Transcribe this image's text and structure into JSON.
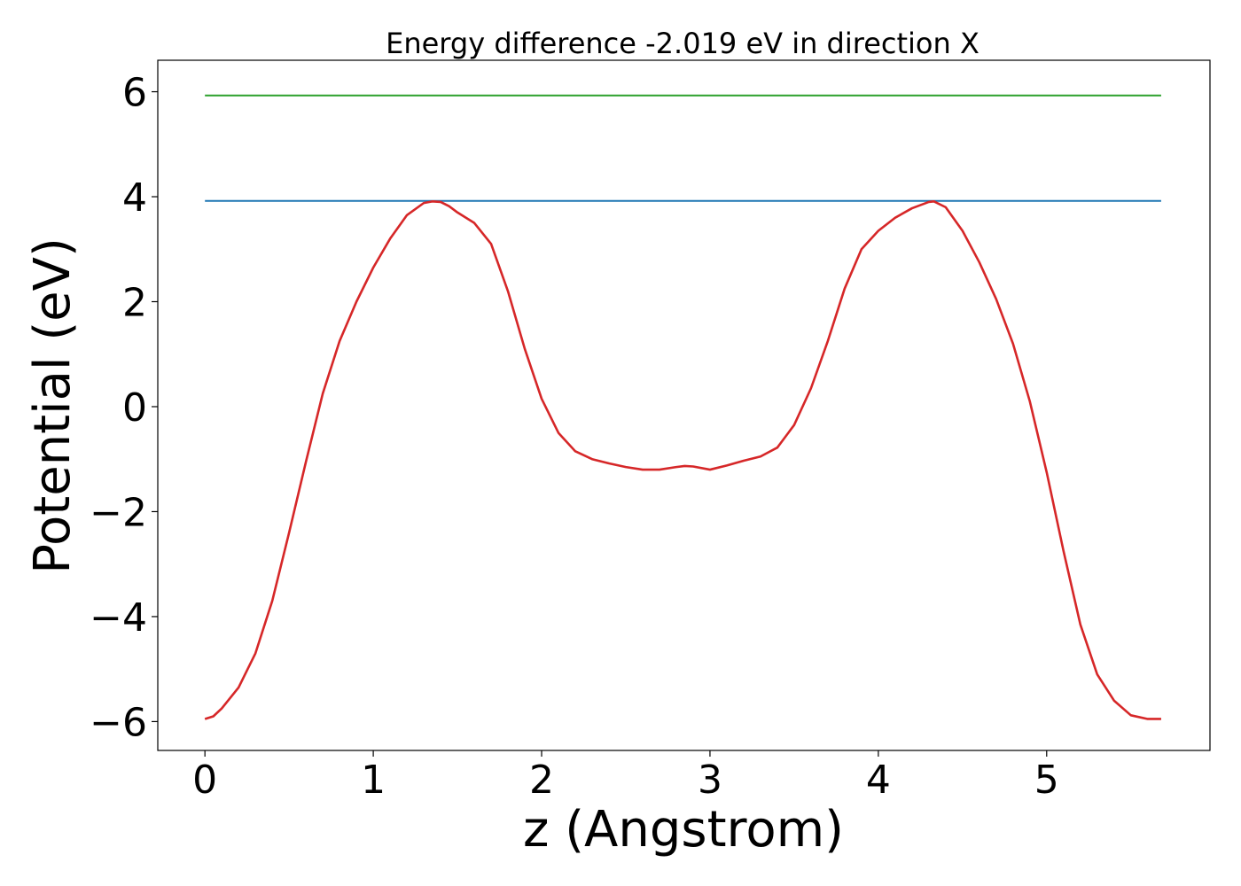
{
  "chart_data": {
    "type": "line",
    "title": "Energy difference -2.019 eV in direction X",
    "xlabel": "z (Angstrom)",
    "ylabel": "Potential (eV)",
    "xlim": [
      -0.28,
      5.97
    ],
    "ylim": [
      -6.55,
      6.6
    ],
    "xticks": [
      0,
      1,
      2,
      3,
      4,
      5
    ],
    "yticks": [
      -6,
      -4,
      -2,
      0,
      2,
      4,
      6
    ],
    "xtick_labels": [
      "0",
      "1",
      "2",
      "3",
      "4",
      "5"
    ],
    "ytick_labels": [
      "−6",
      "−4",
      "−2",
      "0",
      "2",
      "4",
      "6"
    ],
    "grid": false,
    "series": [
      {
        "color": "#2ca02c",
        "style": "horizontal",
        "x": [
          0,
          5.68
        ],
        "values": [
          5.93,
          5.93
        ]
      },
      {
        "color": "#1f77b4",
        "style": "horizontal",
        "x": [
          0,
          5.68
        ],
        "values": [
          3.92,
          3.92
        ]
      },
      {
        "color": "#d62728",
        "style": "curve",
        "x": [
          0.0,
          0.05,
          0.1,
          0.2,
          0.3,
          0.4,
          0.5,
          0.6,
          0.7,
          0.8,
          0.9,
          1.0,
          1.1,
          1.2,
          1.3,
          1.35,
          1.4,
          1.45,
          1.5,
          1.6,
          1.7,
          1.8,
          1.9,
          2.0,
          2.1,
          2.2,
          2.3,
          2.4,
          2.5,
          2.6,
          2.7,
          2.8,
          2.85,
          2.9,
          3.0,
          3.1,
          3.2,
          3.3,
          3.4,
          3.5,
          3.6,
          3.7,
          3.8,
          3.9,
          4.0,
          4.1,
          4.2,
          4.3,
          4.33,
          4.4,
          4.5,
          4.6,
          4.7,
          4.8,
          4.9,
          5.0,
          5.1,
          5.2,
          5.3,
          5.4,
          5.5,
          5.6,
          5.68
        ],
        "values": [
          -5.95,
          -5.9,
          -5.75,
          -5.35,
          -4.7,
          -3.7,
          -2.4,
          -1.05,
          0.25,
          1.25,
          2.0,
          2.65,
          3.2,
          3.65,
          3.88,
          3.91,
          3.9,
          3.82,
          3.7,
          3.5,
          3.1,
          2.2,
          1.1,
          0.15,
          -0.5,
          -0.85,
          -1.0,
          -1.08,
          -1.15,
          -1.2,
          -1.2,
          -1.15,
          -1.13,
          -1.14,
          -1.2,
          -1.12,
          -1.03,
          -0.95,
          -0.78,
          -0.35,
          0.35,
          1.25,
          2.25,
          3.0,
          3.35,
          3.6,
          3.78,
          3.9,
          3.91,
          3.8,
          3.35,
          2.75,
          2.05,
          1.2,
          0.1,
          -1.25,
          -2.75,
          -4.15,
          -5.1,
          -5.6,
          -5.88,
          -5.95,
          -5.95
        ]
      }
    ]
  }
}
